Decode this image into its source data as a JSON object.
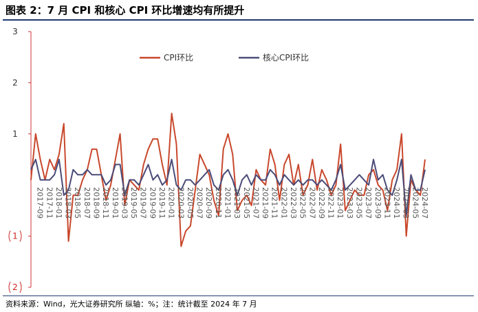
{
  "header": {
    "title": "图表 2：7 月 CPI 和核心 CPI 环比增速均有所提升"
  },
  "footer": {
    "source": "资料来源：Wind，光大证券研究所  纵轴：%；注：统计截至 2024 年 7 月"
  },
  "colors": {
    "cpi": "#c8472b",
    "core": "#4a4b78",
    "axis": "#cc3333",
    "title_rule": "#1f3a6e"
  },
  "chart_data": {
    "type": "line",
    "ylim": [
      -2,
      3
    ],
    "yticks": [
      {
        "value": 3,
        "label": "3"
      },
      {
        "value": 2,
        "label": "2"
      },
      {
        "value": 1,
        "label": "1"
      },
      {
        "value": -1,
        "label": "1"
      },
      {
        "value": -2,
        "label": "2"
      }
    ],
    "x": [
      "2017-07",
      "2017-08",
      "2017-09",
      "2017-10",
      "2017-11",
      "2017-12",
      "2018-01",
      "2018-02",
      "2018-03",
      "2018-04",
      "2018-05",
      "2018-06",
      "2018-07",
      "2018-08",
      "2018-09",
      "2018-10",
      "2018-11",
      "2018-12",
      "2019-01",
      "2019-02",
      "2019-03",
      "2019-04",
      "2019-05",
      "2019-06",
      "2019-07",
      "2019-08",
      "2019-09",
      "2019-10",
      "2019-11",
      "2019-12",
      "2020-01",
      "2020-02",
      "2020-03",
      "2020-04",
      "2020-05",
      "2020-06",
      "2020-07",
      "2020-08",
      "2020-09",
      "2020-10",
      "2020-11",
      "2020-12",
      "2021-01",
      "2021-02",
      "2021-03",
      "2021-04",
      "2021-05",
      "2021-06",
      "2021-07",
      "2021-08",
      "2021-09",
      "2021-10",
      "2021-11",
      "2021-12",
      "2022-01",
      "2022-02",
      "2022-03",
      "2022-04",
      "2022-05",
      "2022-06",
      "2022-07",
      "2022-08",
      "2022-09",
      "2022-10",
      "2022-11",
      "2022-12",
      "2023-01",
      "2023-02",
      "2023-03",
      "2023-04",
      "2023-05",
      "2023-06",
      "2023-07",
      "2023-08",
      "2023-09",
      "2023-10",
      "2023-11",
      "2023-12",
      "2024-01",
      "2024-02",
      "2024-03",
      "2024-04",
      "2024-05",
      "2024-06",
      "2024-07"
    ],
    "xtick_labels": [
      "2017-09",
      "2017-11",
      "2018-01",
      "2018-03",
      "2018-05",
      "2018-07",
      "2018-09",
      "2018-11",
      "2019-01",
      "2019-03",
      "2019-05",
      "2019-07",
      "2019-09",
      "2019-11",
      "2020-01",
      "2020-03",
      "2020-05",
      "2020-07",
      "2020-09",
      "2020-11",
      "2021-01",
      "2021-03",
      "2021-05",
      "2021-07",
      "2021-09",
      "2021-11",
      "2022-01",
      "2022-03",
      "2022-05",
      "2022-07",
      "2022-09",
      "2022-11",
      "2023-01",
      "2023-03",
      "2023-05",
      "2023-07",
      "2023-09",
      "2023-11",
      "2024-01",
      "2024-03",
      "2024-05",
      "2024-07"
    ],
    "legend_position": "top-right",
    "series": [
      {
        "name": "CPI环比",
        "color": "#c8472b",
        "values": [
          0.1,
          1.0,
          0.5,
          0.1,
          0.5,
          0.3,
          0.6,
          1.2,
          -1.1,
          -0.2,
          -0.2,
          0.1,
          0.3,
          0.7,
          0.7,
          0.2,
          -0.3,
          0.0,
          0.5,
          1.0,
          -0.4,
          0.1,
          0.0,
          -0.1,
          0.4,
          0.7,
          0.9,
          0.9,
          0.4,
          0.0,
          1.4,
          0.8,
          -1.2,
          -0.9,
          -0.8,
          -0.1,
          0.6,
          0.4,
          0.2,
          -0.3,
          -0.6,
          0.7,
          1.0,
          0.6,
          -0.5,
          -0.3,
          -0.2,
          -0.4,
          0.3,
          0.1,
          0.0,
          0.7,
          0.4,
          -0.3,
          0.4,
          0.6,
          0.0,
          0.4,
          -0.2,
          0.0,
          0.5,
          -0.1,
          0.3,
          0.1,
          -0.2,
          0.0,
          0.8,
          -0.5,
          -0.3,
          -0.1,
          -0.2,
          -0.2,
          0.2,
          0.3,
          0.0,
          -0.1,
          -0.5,
          0.1,
          0.3,
          1.0,
          -1.0,
          0.1,
          -0.1,
          -0.2,
          0.5
        ]
      },
      {
        "name": "核心CPI环比",
        "color": "#4a4b78",
        "values": [
          0.3,
          0.5,
          0.1,
          0.1,
          0.1,
          0.2,
          0.5,
          -0.2,
          -0.1,
          0.3,
          0.2,
          0.2,
          0.3,
          0.2,
          0.2,
          0.2,
          0.0,
          0.1,
          0.4,
          0.4,
          -0.2,
          0.1,
          0.1,
          0.0,
          0.2,
          0.4,
          0.1,
          0.2,
          0.0,
          0.1,
          0.5,
          0.0,
          -0.1,
          0.1,
          0.1,
          0.0,
          0.1,
          0.2,
          0.3,
          0.0,
          -0.1,
          0.2,
          0.3,
          0.1,
          -0.2,
          0.1,
          0.2,
          0.0,
          0.2,
          0.1,
          0.1,
          0.3,
          0.2,
          0.0,
          0.2,
          0.1,
          0.0,
          0.1,
          0.0,
          0.1,
          0.1,
          0.0,
          0.1,
          0.0,
          -0.1,
          0.1,
          0.4,
          -0.1,
          0.0,
          0.1,
          0.2,
          0.1,
          0.0,
          0.5,
          0.1,
          0.2,
          -0.1,
          -0.2,
          0.1,
          0.5,
          -0.6,
          0.2,
          -0.1,
          -0.1,
          0.3
        ]
      }
    ]
  }
}
